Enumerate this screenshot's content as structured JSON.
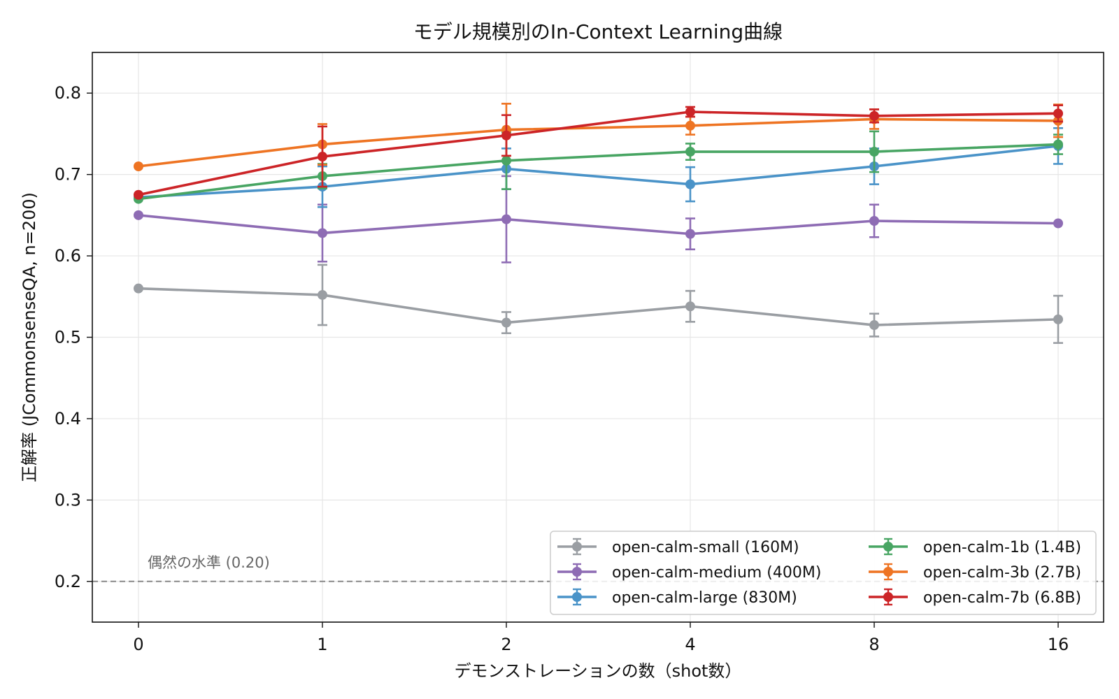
{
  "chart_data": {
    "type": "line",
    "title": "モデル規模別のIn-Context Learning曲線",
    "xlabel": "デモンストレーションの数（shot数）",
    "ylabel": "正解率 (JCommonsenseQA, n=200)",
    "categories": [
      "0",
      "1",
      "2",
      "4",
      "8",
      "16"
    ],
    "ylim": [
      0.15,
      0.85
    ],
    "yticks": [
      0.2,
      0.3,
      0.4,
      0.5,
      0.6,
      0.7,
      0.8
    ],
    "grid": true,
    "legend_position": "bottom-right",
    "reference_line": {
      "value": 0.2,
      "label": "偶然の水準 (0.20)",
      "color": "#888888"
    },
    "series": [
      {
        "name": "open-calm-small (160M)",
        "color": "#9a9ea3",
        "values": [
          0.56,
          0.552,
          0.518,
          0.538,
          0.515,
          0.522
        ],
        "errors": [
          0.0,
          0.037,
          0.013,
          0.019,
          0.014,
          0.029
        ]
      },
      {
        "name": "open-calm-medium (400M)",
        "color": "#8e6cb4",
        "values": [
          0.65,
          0.628,
          0.645,
          0.627,
          0.643,
          0.64
        ],
        "errors": [
          0.0,
          0.035,
          0.053,
          0.019,
          0.02,
          0.0
        ]
      },
      {
        "name": "open-calm-large (830M)",
        "color": "#4a93c8",
        "values": [
          0.672,
          0.685,
          0.707,
          0.688,
          0.71,
          0.735
        ],
        "errors": [
          0.0,
          0.025,
          0.025,
          0.021,
          0.022,
          0.022
        ]
      },
      {
        "name": "open-calm-1b (1.4B)",
        "color": "#48a563",
        "values": [
          0.67,
          0.698,
          0.717,
          0.728,
          0.728,
          0.737
        ],
        "errors": [
          0.0,
          0.015,
          0.035,
          0.01,
          0.025,
          0.012
        ]
      },
      {
        "name": "open-calm-3b (2.7B)",
        "color": "#ee7423",
        "values": [
          0.71,
          0.737,
          0.755,
          0.76,
          0.768,
          0.766
        ],
        "errors": [
          0.0,
          0.025,
          0.032,
          0.011,
          0.012,
          0.02
        ]
      },
      {
        "name": "open-calm-7b (6.8B)",
        "color": "#cc2427",
        "values": [
          0.675,
          0.722,
          0.748,
          0.777,
          0.772,
          0.775
        ],
        "errors": [
          0.0,
          0.037,
          0.025,
          0.006,
          0.008,
          0.01
        ]
      }
    ]
  }
}
